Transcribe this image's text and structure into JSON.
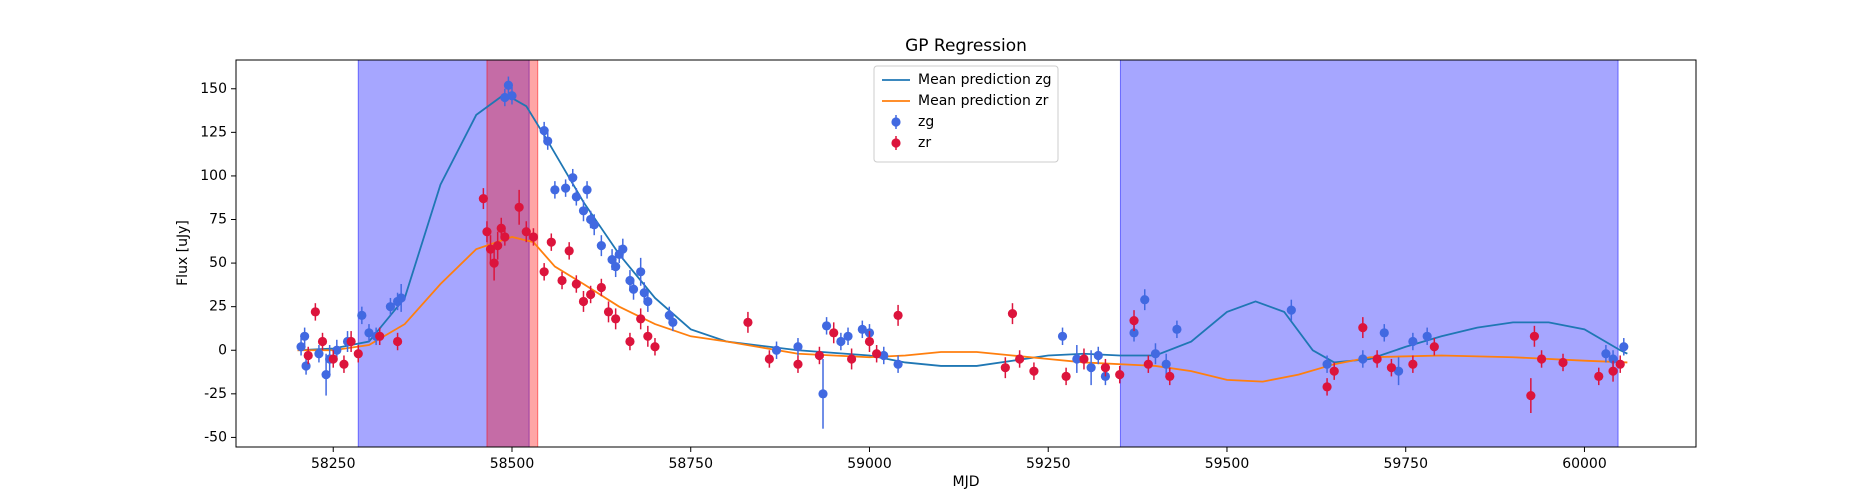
{
  "chart_data": {
    "type": "line",
    "title": "GP Regression",
    "x_label": "MJD",
    "y_label": "Flux [uJy]",
    "xlim": [
      58114,
      60156
    ],
    "ylim": [
      -55.5,
      166.5
    ],
    "xticks": [
      58250,
      58500,
      58750,
      59000,
      59250,
      59500,
      59750,
      60000
    ],
    "yticks": [
      -50,
      -25,
      0,
      25,
      50,
      75,
      100,
      125,
      150
    ],
    "legend": "upper center",
    "span_alpha": 0.35,
    "spans": [
      {
        "start": 58285,
        "end": 58524,
        "color": "#0000ff"
      },
      {
        "start": 58465,
        "end": 58536,
        "color": "#ff0000"
      },
      {
        "start": 59351,
        "end": 60047,
        "color": "#0000ff"
      }
    ],
    "series": [
      {
        "name": "Mean prediction zg",
        "type": "line",
        "color": "#1f77b4",
        "x": [
          58200,
          58250,
          58300,
          58350,
          58400,
          58450,
          58490,
          58520,
          58550,
          58600,
          58650,
          58700,
          58750,
          58800,
          58900,
          59000,
          59050,
          59100,
          59150,
          59200,
          59250,
          59300,
          59350,
          59400,
          59450,
          59500,
          59540,
          59580,
          59620,
          59650,
          59700,
          59750,
          59800,
          59850,
          59900,
          59950,
          60000,
          60050,
          60060
        ],
        "values": [
          0,
          1,
          5,
          30,
          95,
          135,
          147,
          140,
          120,
          85,
          55,
          30,
          12,
          5,
          0,
          -3,
          -7,
          -9,
          -9,
          -6,
          -3,
          -2,
          -3,
          -3,
          5,
          22,
          28,
          22,
          0,
          -7,
          -5,
          2,
          8,
          13,
          16,
          16,
          12,
          0,
          -2
        ]
      },
      {
        "name": "Mean prediction zr",
        "type": "line",
        "color": "#ff7f0e",
        "x": [
          58200,
          58250,
          58300,
          58350,
          58400,
          58450,
          58500,
          58530,
          58560,
          58600,
          58650,
          58700,
          58750,
          58800,
          58900,
          59000,
          59050,
          59100,
          59150,
          59200,
          59250,
          59300,
          59400,
          59450,
          59500,
          59550,
          59600,
          59650,
          59700,
          59800,
          59900,
          60000,
          60060
        ],
        "values": [
          0,
          0,
          3,
          15,
          38,
          58,
          65,
          62,
          48,
          38,
          25,
          15,
          8,
          5,
          -2,
          -4,
          -3,
          -1,
          -1,
          -3,
          -5,
          -7,
          -9,
          -12,
          -17,
          -18,
          -14,
          -8,
          -4,
          -3,
          -4,
          -6,
          -7
        ]
      },
      {
        "name": "zg",
        "type": "scatter",
        "color": "#4169e1",
        "x": [
          58205,
          58210,
          58212,
          58230,
          58240,
          58245,
          58255,
          58270,
          58290,
          58300,
          58310,
          58330,
          58340,
          58345,
          58490,
          58495,
          58500,
          58545,
          58550,
          58560,
          58575,
          58585,
          58590,
          58600,
          58605,
          58610,
          58615,
          58625,
          58640,
          58645,
          58650,
          58655,
          58665,
          58670,
          58680,
          58685,
          58690,
          58720,
          58725,
          58870,
          58900,
          58935,
          58940,
          58960,
          58970,
          58990,
          59000,
          59020,
          59040,
          59270,
          59290,
          59310,
          59320,
          59330,
          59370,
          59385,
          59400,
          59415,
          59430,
          59590,
          59640,
          59690,
          59720,
          59740,
          59760,
          59780,
          60030,
          60040,
          60055
        ],
        "values": [
          2,
          8,
          -9,
          -2,
          -14,
          -5,
          0,
          5,
          20,
          10,
          8,
          25,
          28,
          30,
          145,
          152,
          146,
          126,
          120,
          92,
          93,
          99,
          88,
          80,
          92,
          75,
          72,
          60,
          52,
          48,
          55,
          58,
          40,
          35,
          45,
          33,
          28,
          20,
          16,
          0,
          2,
          -25,
          14,
          5,
          8,
          12,
          10,
          -3,
          -8,
          8,
          -5,
          -10,
          -3,
          -15,
          10,
          29,
          -2,
          -8,
          12,
          23,
          -8,
          -5,
          10,
          -12,
          5,
          8,
          -2,
          -5,
          2
        ],
        "errors": [
          5,
          5,
          5,
          5,
          12,
          8,
          6,
          6,
          5,
          5,
          5,
          5,
          5,
          8,
          5,
          5,
          5,
          5,
          5,
          5,
          5,
          5,
          5,
          6,
          5,
          5,
          6,
          6,
          6,
          6,
          5,
          6,
          6,
          6,
          8,
          6,
          6,
          5,
          5,
          5,
          5,
          20,
          5,
          5,
          5,
          5,
          5,
          5,
          5,
          5,
          8,
          10,
          5,
          5,
          5,
          6,
          6,
          6,
          5,
          6,
          5,
          5,
          5,
          8,
          5,
          5,
          5,
          5,
          5
        ]
      },
      {
        "name": "zr",
        "type": "scatter",
        "color": "#dc143c",
        "x": [
          58215,
          58225,
          58235,
          58250,
          58265,
          58275,
          58285,
          58315,
          58340,
          58460,
          58465,
          58470,
          58475,
          58480,
          58485,
          58490,
          58510,
          58520,
          58530,
          58545,
          58555,
          58570,
          58580,
          58590,
          58600,
          58610,
          58625,
          58635,
          58645,
          58665,
          58680,
          58690,
          58700,
          58830,
          58860,
          58900,
          58930,
          58950,
          58975,
          59000,
          59010,
          59040,
          59190,
          59200,
          59210,
          59230,
          59275,
          59300,
          59330,
          59350,
          59370,
          59390,
          59420,
          59640,
          59650,
          59690,
          59710,
          59730,
          59760,
          59790,
          59925,
          59930,
          59940,
          59970,
          60020,
          60040,
          60050
        ],
        "values": [
          -3,
          22,
          5,
          -5,
          -8,
          5,
          -2,
          8,
          5,
          87,
          68,
          58,
          50,
          60,
          70,
          65,
          82,
          68,
          65,
          45,
          62,
          40,
          57,
          38,
          28,
          32,
          36,
          22,
          18,
          5,
          18,
          8,
          2,
          16,
          -5,
          -8,
          -3,
          10,
          -5,
          5,
          -2,
          20,
          -10,
          21,
          -5,
          -12,
          -15,
          -5,
          -10,
          -14,
          17,
          -8,
          -15,
          -21,
          -12,
          13,
          -5,
          -10,
          -8,
          2,
          -26,
          8,
          -5,
          -7,
          -15,
          -12,
          -8
        ],
        "errors": [
          5,
          5,
          5,
          5,
          5,
          6,
          5,
          5,
          5,
          6,
          6,
          8,
          10,
          8,
          6,
          5,
          10,
          6,
          5,
          5,
          5,
          5,
          5,
          5,
          6,
          5,
          5,
          6,
          6,
          5,
          6,
          6,
          5,
          6,
          5,
          5,
          5,
          6,
          6,
          6,
          5,
          6,
          6,
          6,
          5,
          5,
          5,
          6,
          5,
          5,
          6,
          5,
          5,
          5,
          5,
          6,
          5,
          5,
          5,
          5,
          10,
          6,
          5,
          5,
          5,
          6,
          5
        ]
      }
    ]
  }
}
